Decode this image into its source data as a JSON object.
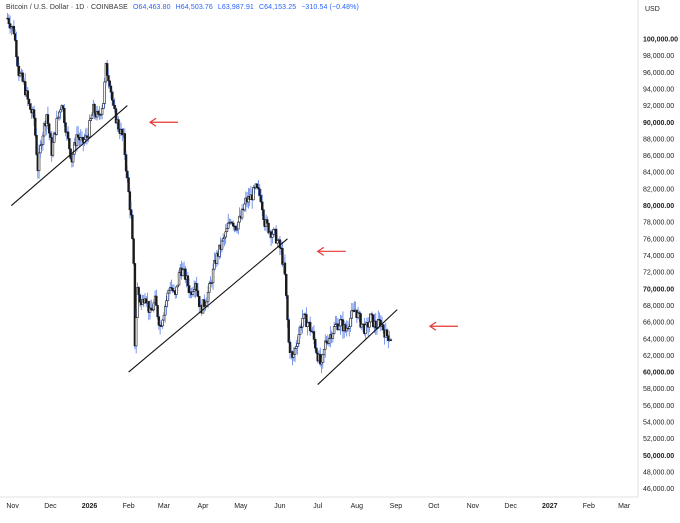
{
  "legend": {
    "symbol": "Bitcoin / U.S. Dollar · 1D · COINBASE",
    "open": "O64,463.80",
    "high": "H64,503.76",
    "low": "L63,987.91",
    "close": "C64,153.25",
    "change": "−310.54 (−0.48%)"
  },
  "colors": {
    "candle": "#1a1a1a",
    "candle_wick": "#5b7fe6",
    "annotation_arrow": "#e53935",
    "trendline": "#111111"
  },
  "chart_data": {
    "type": "candlestick",
    "currency_label": "USD",
    "ylim": [
      45000,
      103000
    ],
    "y_ticks": [
      {
        "value": 100000,
        "label": "100,000.00",
        "bold": true
      },
      {
        "value": 98000,
        "label": "98,000.00"
      },
      {
        "value": 96000,
        "label": "96,000.00"
      },
      {
        "value": 94000,
        "label": "94,000.00"
      },
      {
        "value": 92000,
        "label": "92,000.00"
      },
      {
        "value": 90000,
        "label": "90,000.00",
        "bold": true
      },
      {
        "value": 88000,
        "label": "88,000.00"
      },
      {
        "value": 86000,
        "label": "86,000.00"
      },
      {
        "value": 84000,
        "label": "84,000.00"
      },
      {
        "value": 82000,
        "label": "82,000.00"
      },
      {
        "value": 80000,
        "label": "80,000.00",
        "bold": true
      },
      {
        "value": 78000,
        "label": "78,000.00"
      },
      {
        "value": 76000,
        "label": "76,000.00"
      },
      {
        "value": 74000,
        "label": "74,000.00"
      },
      {
        "value": 72000,
        "label": "72,000.00"
      },
      {
        "value": 70000,
        "label": "70,000.00",
        "bold": true
      },
      {
        "value": 68000,
        "label": "68,000.00"
      },
      {
        "value": 66000,
        "label": "66,000.00"
      },
      {
        "value": 64000,
        "label": "64,000.00"
      },
      {
        "value": 62000,
        "label": "62,000.00"
      },
      {
        "value": 60000,
        "label": "60,000.00",
        "bold": true
      },
      {
        "value": 58000,
        "label": "58,000.00"
      },
      {
        "value": 56000,
        "label": "56,000.00"
      },
      {
        "value": 54000,
        "label": "54,000.00"
      },
      {
        "value": 52000,
        "label": "52,000.00"
      },
      {
        "value": 50000,
        "label": "50,000.00",
        "bold": true
      },
      {
        "value": 48000,
        "label": "48,000.00"
      },
      {
        "value": 46000,
        "label": "46,000.00"
      }
    ],
    "x_ticks": [
      {
        "date": "2025-11-01",
        "label": "Nov"
      },
      {
        "date": "2025-12-01",
        "label": "Dec"
      },
      {
        "date": "2026-01-01",
        "label": "2026",
        "bold": true
      },
      {
        "date": "2026-02-01",
        "label": "Feb"
      },
      {
        "date": "2026-03-01",
        "label": "Mar"
      },
      {
        "date": "2026-04-01",
        "label": "Apr"
      },
      {
        "date": "2026-05-01",
        "label": "May"
      },
      {
        "date": "2026-06-01",
        "label": "Jun"
      },
      {
        "date": "2026-07-01",
        "label": "Jul"
      },
      {
        "date": "2026-08-01",
        "label": "Aug"
      },
      {
        "date": "2026-09-01",
        "label": "Sep"
      },
      {
        "date": "2026-10-01",
        "label": "Oct"
      },
      {
        "date": "2026-11-01",
        "label": "Nov"
      },
      {
        "date": "2026-12-01",
        "label": "Dec"
      },
      {
        "date": "2027-01-01",
        "label": "2027",
        "bold": true
      },
      {
        "date": "2027-02-01",
        "label": "Feb"
      },
      {
        "date": "2027-03-01",
        "label": "Mar"
      }
    ],
    "price_path": [
      {
        "date": "2025-10-28",
        "close": 102500
      },
      {
        "date": "2025-11-02",
        "close": 101000
      },
      {
        "date": "2025-11-06",
        "close": 96000
      },
      {
        "date": "2025-11-10",
        "close": 94500
      },
      {
        "date": "2025-11-14",
        "close": 92000
      },
      {
        "date": "2025-11-18",
        "close": 90500
      },
      {
        "date": "2025-11-21",
        "close": 84500
      },
      {
        "date": "2025-11-24",
        "close": 88000
      },
      {
        "date": "2025-11-28",
        "close": 91000
      },
      {
        "date": "2025-12-02",
        "close": 86500
      },
      {
        "date": "2025-12-06",
        "close": 90000
      },
      {
        "date": "2025-12-10",
        "close": 92500
      },
      {
        "date": "2025-12-14",
        "close": 88500
      },
      {
        "date": "2025-12-18",
        "close": 85500
      },
      {
        "date": "2025-12-22",
        "close": 88500
      },
      {
        "date": "2025-12-26",
        "close": 87500
      },
      {
        "date": "2025-12-30",
        "close": 88200
      },
      {
        "date": "2026-01-04",
        "close": 91500
      },
      {
        "date": "2026-01-08",
        "close": 90500
      },
      {
        "date": "2026-01-12",
        "close": 92500
      },
      {
        "date": "2026-01-14",
        "close": 96500
      },
      {
        "date": "2026-01-17",
        "close": 95000
      },
      {
        "date": "2026-01-20",
        "close": 91500
      },
      {
        "date": "2026-01-24",
        "close": 89500
      },
      {
        "date": "2026-01-28",
        "close": 88000
      },
      {
        "date": "2026-01-31",
        "close": 83000
      },
      {
        "date": "2026-02-03",
        "close": 78500
      },
      {
        "date": "2026-02-05",
        "close": 72500
      },
      {
        "date": "2026-02-06",
        "close": 63500
      },
      {
        "date": "2026-02-08",
        "close": 70000
      },
      {
        "date": "2026-02-11",
        "close": 68000
      },
      {
        "date": "2026-02-14",
        "close": 69500
      },
      {
        "date": "2026-02-18",
        "close": 67000
      },
      {
        "date": "2026-02-22",
        "close": 68500
      },
      {
        "date": "2026-02-26",
        "close": 65500
      },
      {
        "date": "2026-03-02",
        "close": 68000
      },
      {
        "date": "2026-03-06",
        "close": 70500
      },
      {
        "date": "2026-03-10",
        "close": 69000
      },
      {
        "date": "2026-03-14",
        "close": 72500
      },
      {
        "date": "2026-03-18",
        "close": 71500
      },
      {
        "date": "2026-03-22",
        "close": 69500
      },
      {
        "date": "2026-03-26",
        "close": 71000
      },
      {
        "date": "2026-03-30",
        "close": 67500
      },
      {
        "date": "2026-04-03",
        "close": 68500
      },
      {
        "date": "2026-04-07",
        "close": 70500
      },
      {
        "date": "2026-04-11",
        "close": 73500
      },
      {
        "date": "2026-04-15",
        "close": 75000
      },
      {
        "date": "2026-04-19",
        "close": 76500
      },
      {
        "date": "2026-04-23",
        "close": 78500
      },
      {
        "date": "2026-04-27",
        "close": 77500
      },
      {
        "date": "2026-05-01",
        "close": 78500
      },
      {
        "date": "2026-05-05",
        "close": 80500
      },
      {
        "date": "2026-05-09",
        "close": 81000
      },
      {
        "date": "2026-05-13",
        "close": 82000
      },
      {
        "date": "2026-05-17",
        "close": 81000
      },
      {
        "date": "2026-05-20",
        "close": 78000
      },
      {
        "date": "2026-05-24",
        "close": 77000
      },
      {
        "date": "2026-05-28",
        "close": 76500
      },
      {
        "date": "2026-06-02",
        "close": 74500
      },
      {
        "date": "2026-06-05",
        "close": 71500
      },
      {
        "date": "2026-06-08",
        "close": 63500
      },
      {
        "date": "2026-06-11",
        "close": 61500
      },
      {
        "date": "2026-06-15",
        "close": 64000
      },
      {
        "date": "2026-06-19",
        "close": 66500
      },
      {
        "date": "2026-06-23",
        "close": 66000
      },
      {
        "date": "2026-06-27",
        "close": 64500
      },
      {
        "date": "2026-07-01",
        "close": 62000
      },
      {
        "date": "2026-07-04",
        "close": 60500
      },
      {
        "date": "2026-07-07",
        "close": 63500
      },
      {
        "date": "2026-07-11",
        "close": 64500
      },
      {
        "date": "2026-07-15",
        "close": 65500
      },
      {
        "date": "2026-07-19",
        "close": 66000
      },
      {
        "date": "2026-07-23",
        "close": 65000
      },
      {
        "date": "2026-07-27",
        "close": 66500
      },
      {
        "date": "2026-07-31",
        "close": 67500
      },
      {
        "date": "2026-08-04",
        "close": 66000
      },
      {
        "date": "2026-08-08",
        "close": 65000
      },
      {
        "date": "2026-08-12",
        "close": 66500
      },
      {
        "date": "2026-08-16",
        "close": 65500
      },
      {
        "date": "2026-08-20",
        "close": 66000
      },
      {
        "date": "2026-08-24",
        "close": 64500
      },
      {
        "date": "2026-08-28",
        "close": 64153
      }
    ],
    "trendlines": [
      {
        "start": {
          "date": "2025-10-31",
          "price": 80000
        },
        "end": {
          "date": "2026-01-31",
          "price": 92000
        }
      },
      {
        "start": {
          "date": "2026-02-01",
          "price": 60000
        },
        "end": {
          "date": "2026-06-07",
          "price": 76000
        }
      },
      {
        "start": {
          "date": "2026-07-01",
          "price": 58500
        },
        "end": {
          "date": "2026-09-02",
          "price": 67500
        }
      }
    ],
    "arrows": [
      {
        "date": "2026-02-18",
        "price": 90000
      },
      {
        "date": "2026-07-01",
        "price": 74500
      },
      {
        "date": "2026-09-28",
        "price": 65500
      }
    ]
  }
}
